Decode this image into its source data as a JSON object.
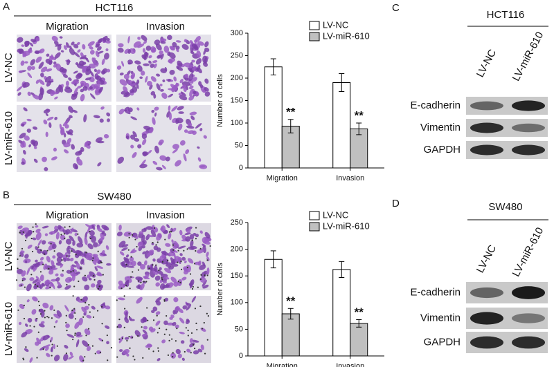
{
  "panels": [
    {
      "letter": "A",
      "cell_line": "HCT116",
      "columns": [
        "Migration",
        "Invasion"
      ],
      "rows": [
        "LV-NC",
        "LV-miR-610"
      ]
    },
    {
      "letter": "B",
      "cell_line": "SW480",
      "columns": [
        "Migration",
        "Invasion"
      ],
      "rows": [
        "LV-NC",
        "LV-miR-610"
      ]
    }
  ],
  "blots": [
    {
      "letter": "C",
      "cell_line": "HCT116",
      "lanes": [
        "LV-NC",
        "LV-miR-610"
      ],
      "proteins": [
        "E-cadherin",
        "Vimentin",
        "GAPDH"
      ]
    },
    {
      "letter": "D",
      "cell_line": "SW480",
      "lanes": [
        "LV-NC",
        "LV-miR-610"
      ],
      "proteins": [
        "E-cadherin",
        "Vimentin",
        "GAPDH"
      ]
    }
  ],
  "chart_data": [
    {
      "type": "bar",
      "ylabel": "Number of cells",
      "categories": [
        "Migration",
        "Invasion"
      ],
      "series": [
        {
          "name": "LV-NC",
          "color": "#ffffff",
          "values": [
            225,
            190
          ],
          "errors": [
            18,
            20
          ]
        },
        {
          "name": "LV-miR-610",
          "color": "#c0c0c0",
          "values": [
            93,
            87
          ],
          "errors": [
            15,
            13
          ],
          "annotations": [
            "**",
            "**"
          ]
        }
      ],
      "ylim": [
        0,
        300
      ],
      "yticks": [
        0,
        50,
        100,
        150,
        200,
        250,
        300
      ],
      "legend": "top-right"
    },
    {
      "type": "bar",
      "ylabel": "Number of cells",
      "categories": [
        "Migration",
        "Invasion"
      ],
      "series": [
        {
          "name": "LV-NC",
          "color": "#ffffff",
          "values": [
            181,
            162
          ],
          "errors": [
            16,
            15
          ]
        },
        {
          "name": "LV-miR-610",
          "color": "#c0c0c0",
          "values": [
            79,
            61
          ],
          "errors": [
            10,
            7
          ],
          "annotations": [
            "**",
            "**"
          ]
        }
      ],
      "ylim": [
        0,
        250
      ],
      "yticks": [
        0,
        50,
        100,
        150,
        200,
        250
      ],
      "legend": "top-right"
    }
  ]
}
